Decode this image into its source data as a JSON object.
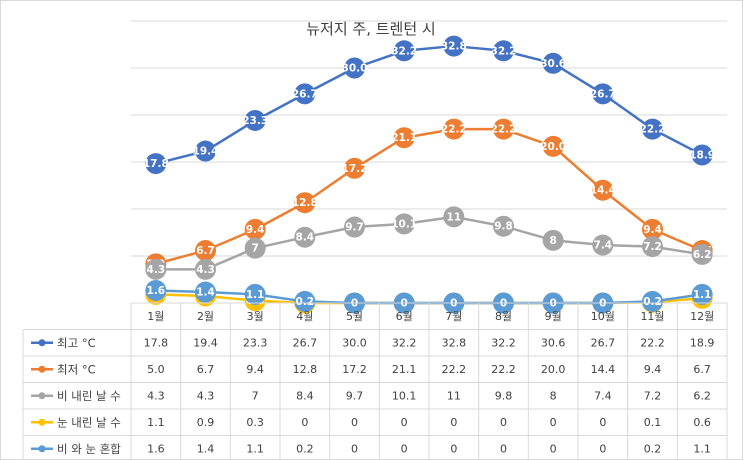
{
  "chart_data": {
    "type": "line",
    "title": "뉴저지 주, 트렌턴 시",
    "categories": [
      "1월",
      "2월",
      "3월",
      "4월",
      "5월",
      "6월",
      "7월",
      "8월",
      "9월",
      "10월",
      "11월",
      "12월"
    ],
    "ylim": [
      0,
      36
    ],
    "series": [
      {
        "name": "최고 °C",
        "color": "#4472c4",
        "values": [
          17.8,
          19.4,
          23.3,
          26.7,
          30.0,
          32.2,
          32.8,
          32.2,
          30.6,
          26.7,
          22.2,
          18.9
        ],
        "labels": [
          "17.8",
          "19.4",
          "23.3",
          "26.7",
          "30.0",
          "32.2",
          "32.8",
          "32.2",
          "30.6",
          "26.7",
          "22.2",
          "18.9"
        ]
      },
      {
        "name": "최저 °C",
        "color": "#ed7d31",
        "values": [
          5.0,
          6.7,
          9.4,
          12.8,
          17.2,
          21.1,
          22.2,
          22.2,
          20.0,
          14.4,
          9.4,
          6.7
        ],
        "labels": [
          "5.0",
          "6.7",
          "9.4",
          "12.8",
          "17.2",
          "21.1",
          "22.2",
          "22.2",
          "20.0",
          "14.4",
          "9.4",
          "6.7"
        ]
      },
      {
        "name": "비 내린 날 수",
        "color": "#a5a5a5",
        "values": [
          4.3,
          4.3,
          7,
          8.4,
          9.7,
          10.1,
          11,
          9.8,
          8,
          7.4,
          7.2,
          6.2
        ],
        "labels": [
          "4.3",
          "4.3",
          "7",
          "8.4",
          "9.7",
          "10.1",
          "11",
          "9.8",
          "8",
          "7.4",
          "7.2",
          "6.2"
        ]
      },
      {
        "name": "눈 내린 날 수",
        "color": "#ffc000",
        "values": [
          1.1,
          0.9,
          0.3,
          0,
          0,
          0,
          0,
          0,
          0,
          0,
          0.1,
          0.6
        ],
        "labels": [
          "1.1",
          "0.9",
          "0.3",
          "0",
          "0",
          "0",
          "0",
          "0",
          "0",
          "0",
          "0.1",
          "0.6"
        ]
      },
      {
        "name": "비 와 눈 혼합",
        "color": "#5b9bd5",
        "values": [
          1.6,
          1.4,
          1.1,
          0.2,
          0,
          0,
          0,
          0,
          0,
          0,
          0.2,
          1.1
        ],
        "labels": [
          "1.6",
          "1.4",
          "1.1",
          "0.2",
          "0",
          "0",
          "0",
          "0",
          "0",
          "0",
          "0.2",
          "1.1"
        ]
      }
    ]
  }
}
